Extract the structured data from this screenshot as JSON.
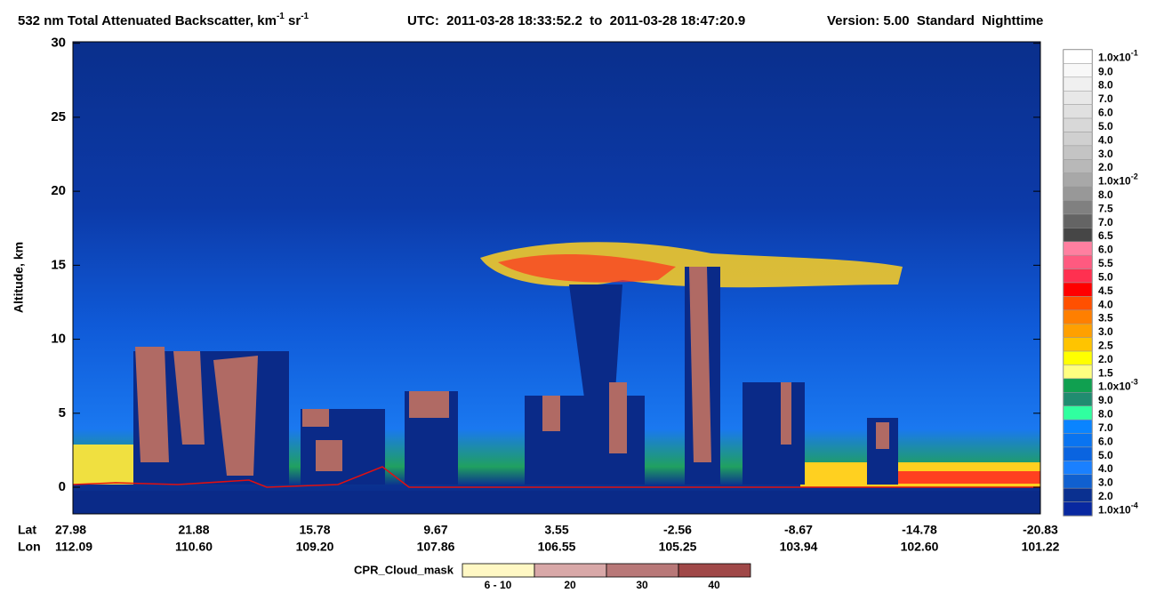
{
  "chart_data": {
    "type": "curtain",
    "title": [
      "532 nm Total Attenuated Backscatter, km",
      "-1",
      " sr",
      "-1"
    ],
    "utc": "UTC:  2011-03-28 18:33:52.2  to  2011-03-28 18:47:20.9",
    "version": "Version: 5.00  Standard  Nighttime",
    "y_label": "Altitude, km",
    "ylim": [
      -1.8,
      30.1
    ],
    "yticks": [
      0,
      5,
      10,
      15,
      20,
      25,
      30
    ],
    "x_rows": [
      "Lat",
      "Lon"
    ],
    "x_ticks": {
      "lat": [
        "27.98",
        "21.88",
        "15.78",
        "9.67",
        "3.55",
        "-2.56",
        "-8.67",
        "-14.78",
        "-20.83"
      ],
      "lon": [
        "112.09",
        "110.60",
        "109.20",
        "107.86",
        "106.55",
        "105.25",
        "103.94",
        "102.60",
        "101.22"
      ]
    },
    "colorbar": [
      {
        "label": {
          "base": "1.0x10",
          "exp": "-1"
        },
        "color": "#ffffff"
      },
      {
        "label": "9.0",
        "color": "#f8f8f8"
      },
      {
        "label": "8.0",
        "color": "#f0f0f0"
      },
      {
        "label": "7.0",
        "color": "#e8e8e8"
      },
      {
        "label": "6.0",
        "color": "#e0e0e0"
      },
      {
        "label": "5.0",
        "color": "#d8d8d8"
      },
      {
        "label": "4.0",
        "color": "#d0d0d0"
      },
      {
        "label": "3.0",
        "color": "#c4c4c4"
      },
      {
        "label": "2.0",
        "color": "#b8b8b8"
      },
      {
        "label": {
          "base": "1.0x10",
          "exp": "-2"
        },
        "color": "#a8a8a8"
      },
      {
        "label": "8.0",
        "color": "#989898"
      },
      {
        "label": "7.5",
        "color": "#808080"
      },
      {
        "label": "7.0",
        "color": "#646464"
      },
      {
        "label": "6.5",
        "color": "#464646"
      },
      {
        "label": "6.0",
        "color": "#ff7fa0"
      },
      {
        "label": "5.5",
        "color": "#ff5a80"
      },
      {
        "label": "5.0",
        "color": "#ff3050"
      },
      {
        "label": "4.5",
        "color": "#ff0000"
      },
      {
        "label": "4.0",
        "color": "#ff5000"
      },
      {
        "label": "3.5",
        "color": "#ff7f00"
      },
      {
        "label": "3.0",
        "color": "#ffa000"
      },
      {
        "label": "2.5",
        "color": "#ffc400"
      },
      {
        "label": "2.0",
        "color": "#ffff00"
      },
      {
        "label": "1.5",
        "color": "#ffff80"
      },
      {
        "label": {
          "base": "1.0x10",
          "exp": "-3"
        },
        "color": "#10a050"
      },
      {
        "label": "9.0",
        "color": "#208c70"
      },
      {
        "label": "8.0",
        "color": "#30ffa0"
      },
      {
        "label": "7.0",
        "color": "#0a84ff"
      },
      {
        "label": "6.0",
        "color": "#0a74f0"
      },
      {
        "label": "5.0",
        "color": "#0a64e0"
      },
      {
        "label": "4.0",
        "color": "#1a80ff"
      },
      {
        "label": "3.0",
        "color": "#1060d0"
      },
      {
        "label": "2.0",
        "color": "#0a3090"
      },
      {
        "label": {
          "base": "1.0x10",
          "exp": "-4"
        },
        "color": "#0828a0"
      }
    ],
    "cpr_legend": {
      "label": "CPR_Cloud_mask",
      "entries": [
        {
          "label": "6 - 10",
          "color": "#fff8c4"
        },
        {
          "label": "20",
          "color": "#d8a8a8"
        },
        {
          "label": "30",
          "color": "#b87878"
        },
        {
          "label": "40",
          "color": "#a04848"
        }
      ]
    }
  }
}
